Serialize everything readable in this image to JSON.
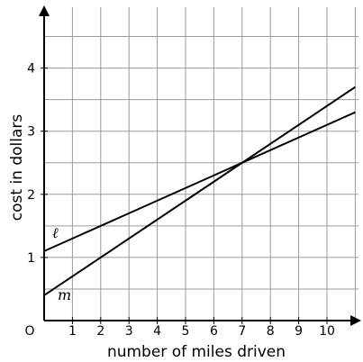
{
  "chart_data": {
    "type": "line",
    "xlabel": "number of miles driven",
    "ylabel": "cost in dollars",
    "origin_label": "O",
    "xlim": [
      0,
      11
    ],
    "ylim": [
      0,
      5
    ],
    "x_ticks": [
      1,
      2,
      3,
      4,
      5,
      6,
      7,
      8,
      9,
      10
    ],
    "y_ticks": [
      1,
      2,
      3,
      4
    ],
    "grid": true,
    "series": [
      {
        "name": "ℓ",
        "x": [
          0,
          11
        ],
        "y": [
          1.1,
          3.3
        ]
      },
      {
        "name": "m",
        "x": [
          0,
          11
        ],
        "y": [
          0.4,
          3.7
        ]
      }
    ]
  }
}
